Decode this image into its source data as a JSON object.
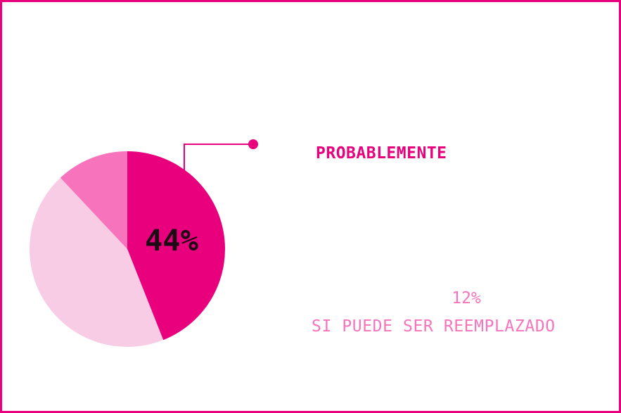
{
  "chart_data": {
    "type": "pie",
    "slices": [
      {
        "value": 44,
        "color": "#e8007d"
      },
      {
        "value": 44,
        "color": "#f8cce4"
      },
      {
        "value": 12,
        "color": "#f774bd"
      }
    ],
    "center_label": "44%",
    "callout_label": "PROBABLEMENTE",
    "callout_color": "#e8007d",
    "secondary_value": "12%",
    "secondary_label": "SI PUEDE SER REEMPLAZADO",
    "secondary_color": "#f774bd"
  }
}
